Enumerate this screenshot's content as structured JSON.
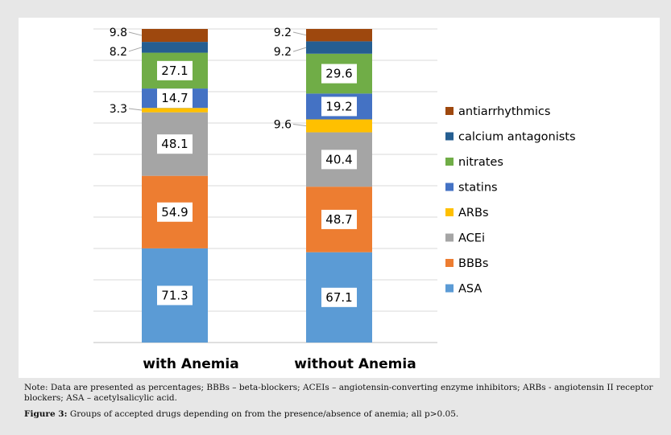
{
  "chart_data": {
    "type": "bar",
    "stacked": true,
    "categories": [
      "with Anemia",
      "without Anemia"
    ],
    "series": [
      {
        "name": "ASA",
        "color": "#5b9bd5",
        "values": [
          71.3,
          67.1
        ]
      },
      {
        "name": "BBBs",
        "color": "#ed7d31",
        "values": [
          54.9,
          48.7
        ]
      },
      {
        "name": "ACEi",
        "color": "#a5a5a5",
        "values": [
          48.1,
          40.4
        ]
      },
      {
        "name": "ARBs",
        "color": "#ffc000",
        "values": [
          3.3,
          9.6
        ]
      },
      {
        "name": "statins",
        "color": "#4472c4",
        "values": [
          14.7,
          19.2
        ]
      },
      {
        "name": "nitrates",
        "color": "#70ad47",
        "values": [
          27.1,
          29.6
        ]
      },
      {
        "name": "calcium antagonists",
        "color": "#255e91",
        "values": [
          8.2,
          9.2
        ]
      },
      {
        "name": "antiarrhythmics",
        "color": "#9e480e",
        "values": [
          9.8,
          9.2
        ]
      }
    ],
    "label_text": [
      [
        "71.3",
        "54.9",
        "48.1",
        "3.3",
        "14.7",
        "27.1",
        "8.2",
        "9.8"
      ],
      [
        "67.1",
        "48.7",
        "40.4",
        "9.6",
        "19.2",
        "29.6",
        "9.2",
        "9.2"
      ]
    ],
    "legend_position": "right",
    "grid": true
  },
  "note": "Note: Data are presented as percentages; BBBs – beta-blockers; ACEIs – angiotensin-converting enzyme inhibitors; ARBs - angiotensin II receptor blockers; ASA – acetylsalicylic acid.",
  "caption": {
    "label": "Figure 3:",
    "text": " Groups of accepted drugs depending on from the presence/absence of anemia; all p>0.05."
  }
}
